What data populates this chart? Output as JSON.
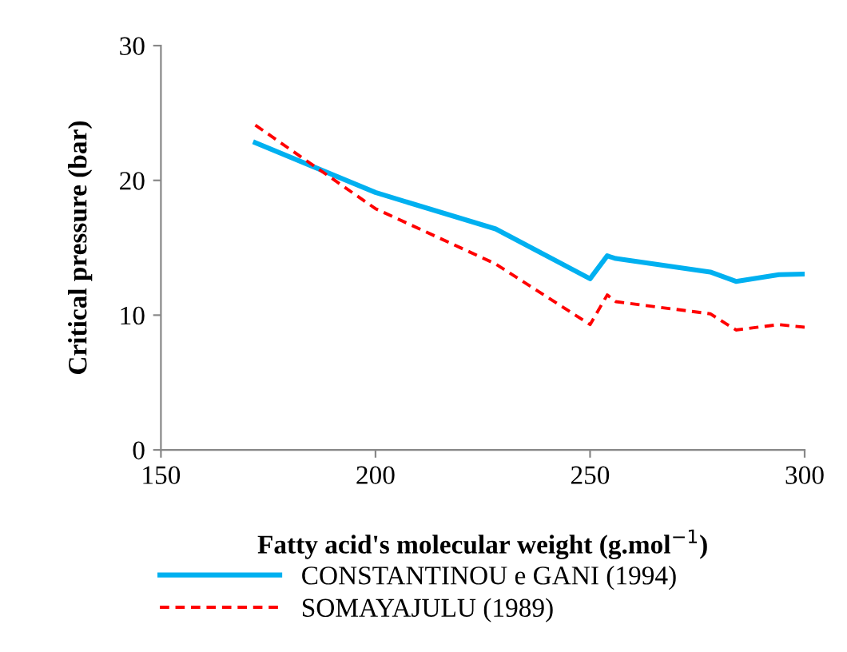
{
  "chart_data": {
    "type": "line",
    "xlabel": "Fatty acid's molecular weight (g.mol$^{−1}$)",
    "ylabel": "Critical pressure (bar)",
    "x": [
      172,
      200,
      228,
      250,
      254,
      256,
      278,
      284,
      294,
      300
    ],
    "series": [
      {
        "name": "CONSTANTINOU e GANI (1994)",
        "color": "#00b0f0",
        "line_style": "solid",
        "values": [
          22.8,
          19.1,
          16.4,
          12.7,
          14.4,
          14.2,
          13.2,
          12.5,
          13.0,
          13.05
        ]
      },
      {
        "name": "SOMAYAJULU (1989)",
        "color": "#ff0000",
        "line_style": "dashed",
        "values": [
          24.1,
          17.9,
          13.8,
          9.3,
          11.5,
          11.0,
          10.1,
          8.9,
          9.3,
          9.1
        ]
      }
    ],
    "xlim": [
      150,
      300
    ],
    "xticks": [
      150,
      200,
      250,
      300
    ],
    "ylim": [
      0,
      30
    ],
    "yticks": [
      0,
      10,
      20,
      30
    ],
    "grid": false,
    "legend": "bottom",
    "marker": "none"
  }
}
